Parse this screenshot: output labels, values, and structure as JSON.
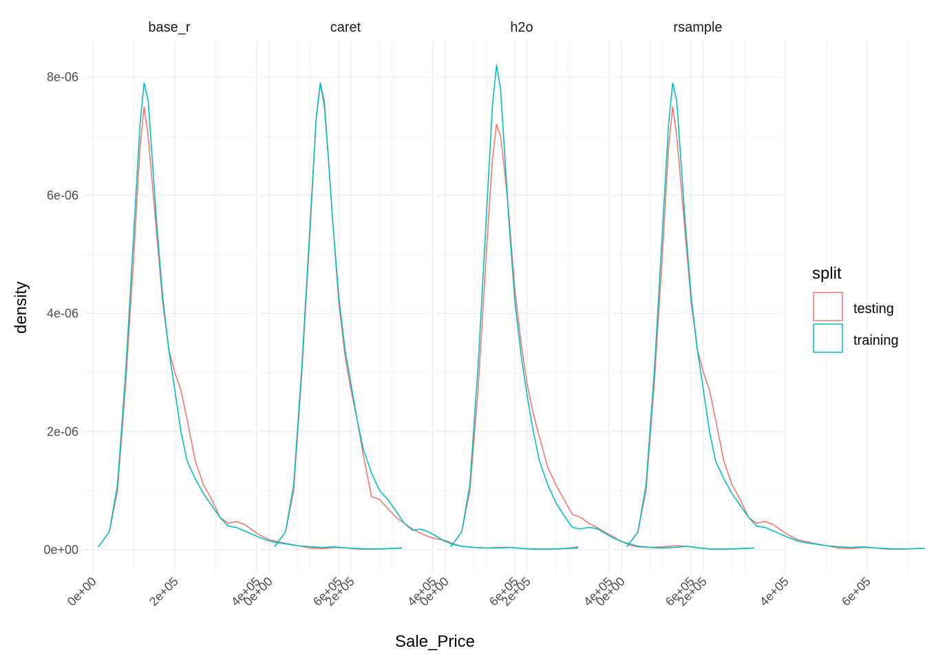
{
  "chart_data": {
    "type": "line",
    "xlabel": "Sale_Price",
    "ylabel": "density",
    "panels": [
      "base_r",
      "caret",
      "h2o",
      "rsample"
    ],
    "x_ticks": [
      0,
      200000,
      400000,
      600000
    ],
    "x_tick_labels": [
      "0e+00",
      "2e+05",
      "4e+05",
      "6e+05"
    ],
    "y_ticks": [
      0,
      2e-06,
      4e-06,
      6e-06,
      8e-06
    ],
    "y_tick_labels": [
      "0e+00",
      "2e-06",
      "4e-06",
      "6e-06",
      "8e-06"
    ],
    "xlim": [
      0,
      755000
    ],
    "ylim": [
      0,
      8.2e-06
    ],
    "grid": true,
    "legend": {
      "title": "split",
      "position": "right",
      "entries": [
        "testing",
        "training"
      ]
    },
    "colors": {
      "testing": "#F8766D",
      "training": "#00BFC4"
    },
    "series": [
      {
        "panel": "base_r",
        "name": "testing",
        "x": [
          13000,
          40000,
          60000,
          80000,
          100000,
          115000,
          125000,
          135000,
          145000,
          155000,
          170000,
          185000,
          200000,
          215000,
          230000,
          250000,
          270000,
          290000,
          310000,
          330000,
          350000,
          370000,
          390000,
          410000,
          430000,
          450000,
          470000,
          500000,
          530000,
          560000,
          590000,
          620000,
          650000,
          680000,
          720000,
          755000
        ],
        "y": [
          5e-08,
          3e-07,
          1e-06,
          2.8e-06,
          5e-06,
          6.8e-06,
          7.5e-06,
          7e-06,
          6.2e-06,
          5.4e-06,
          4.2e-06,
          3.4e-06,
          3e-06,
          2.7e-06,
          2.2e-06,
          1.5e-06,
          1.1e-06,
          8.5e-07,
          5.5e-07,
          4.5e-07,
          4.8e-07,
          4.3e-07,
          3.3e-07,
          2.4e-07,
          1.7e-07,
          1.4e-07,
          1.1e-07,
          7e-08,
          3e-08,
          2e-08,
          4e-08,
          3e-08,
          1e-08,
          1e-08,
          2e-08,
          3e-08
        ]
      },
      {
        "panel": "base_r",
        "name": "training",
        "x": [
          13000,
          40000,
          60000,
          80000,
          100000,
          115000,
          125000,
          135000,
          145000,
          155000,
          170000,
          185000,
          200000,
          215000,
          230000,
          250000,
          270000,
          290000,
          310000,
          330000,
          350000,
          370000,
          390000,
          410000,
          430000,
          450000,
          470000,
          500000,
          530000,
          560000,
          590000,
          620000,
          650000,
          680000,
          720000,
          755000
        ],
        "y": [
          5e-08,
          3e-07,
          1.1e-06,
          3e-06,
          5.4e-06,
          7.2e-06,
          7.9e-06,
          7.6e-06,
          6.6e-06,
          5.6e-06,
          4.3e-06,
          3.4e-06,
          2.7e-06,
          2e-06,
          1.5e-06,
          1.2e-06,
          9.5e-07,
          7.5e-07,
          5.5e-07,
          4e-07,
          3.8e-07,
          3.2e-07,
          2.6e-07,
          2e-07,
          1.5e-07,
          1.2e-07,
          1e-07,
          7e-08,
          5e-08,
          4e-08,
          5e-08,
          3e-08,
          2e-08,
          1e-08,
          2e-08,
          3e-08
        ]
      },
      {
        "panel": "caret",
        "name": "testing",
        "x": [
          13000,
          40000,
          60000,
          80000,
          100000,
          115000,
          125000,
          135000,
          145000,
          155000,
          170000,
          185000,
          200000,
          215000,
          230000,
          250000,
          270000,
          290000,
          310000,
          330000,
          350000,
          370000,
          390000,
          410000,
          430000,
          450000,
          470000,
          500000,
          530000,
          560000,
          590000,
          620000,
          650000,
          680000,
          720000,
          755000
        ],
        "y": [
          5e-08,
          3e-07,
          1e-06,
          3e-06,
          5.4e-06,
          7.3e-06,
          7.9e-06,
          7.6e-06,
          6.6e-06,
          5.6e-06,
          4.2e-06,
          3.3e-06,
          2.7e-06,
          2.2e-06,
          1.6e-06,
          9e-07,
          8.5e-07,
          7e-07,
          5.5e-07,
          4.5e-07,
          3.5e-07,
          2.8e-07,
          2.2e-07,
          1.8e-07,
          1.6e-07,
          1e-07,
          6e-08,
          4e-08,
          3e-08,
          4e-08,
          4e-08,
          2e-08,
          1e-08,
          1e-08,
          2e-08,
          5e-08
        ]
      },
      {
        "panel": "caret",
        "name": "training",
        "x": [
          13000,
          40000,
          60000,
          80000,
          100000,
          115000,
          125000,
          135000,
          145000,
          155000,
          170000,
          185000,
          200000,
          215000,
          230000,
          250000,
          270000,
          290000,
          310000,
          330000,
          350000,
          370000,
          390000,
          410000,
          430000,
          450000,
          470000,
          500000,
          530000,
          560000,
          590000,
          620000,
          650000,
          680000,
          720000,
          755000
        ],
        "y": [
          5e-08,
          3e-07,
          1.1e-06,
          3.1e-06,
          5.5e-06,
          7.3e-06,
          7.9e-06,
          7.5e-06,
          6.6e-06,
          5.6e-06,
          4.3e-06,
          3.4e-06,
          2.8e-06,
          2.2e-06,
          1.7e-06,
          1.3e-06,
          1e-06,
          8.5e-07,
          6.5e-07,
          4.5e-07,
          3.3e-07,
          3.5e-07,
          3e-07,
          2.2e-07,
          1.4e-07,
          9e-08,
          6e-08,
          4e-08,
          3e-08,
          3e-08,
          4e-08,
          2e-08,
          1e-08,
          1e-08,
          2e-08,
          3e-08
        ]
      },
      {
        "panel": "h2o",
        "name": "testing",
        "x": [
          13000,
          40000,
          60000,
          80000,
          100000,
          115000,
          125000,
          135000,
          145000,
          155000,
          170000,
          185000,
          200000,
          215000,
          230000,
          250000,
          270000,
          290000,
          310000,
          330000,
          350000,
          370000,
          390000,
          410000,
          430000,
          450000,
          470000,
          500000,
          530000,
          560000,
          590000,
          620000,
          650000,
          680000,
          720000,
          755000
        ],
        "y": [
          5e-08,
          3e-07,
          1e-06,
          2.7e-06,
          5e-06,
          6.6e-06,
          7.2e-06,
          7e-06,
          6.4e-06,
          5.7e-06,
          4.4e-06,
          3.5e-06,
          2.8e-06,
          2.3e-06,
          1.9e-06,
          1.4e-06,
          1.1e-06,
          8.5e-07,
          6e-07,
          5.5e-07,
          4.5e-07,
          3.8e-07,
          3e-07,
          2.2e-07,
          1.4e-07,
          8e-08,
          5e-08,
          4e-08,
          5e-08,
          7e-08,
          6e-08,
          3e-08,
          1e-08,
          1e-08,
          2e-08,
          3e-08
        ]
      },
      {
        "panel": "h2o",
        "name": "training",
        "x": [
          13000,
          40000,
          60000,
          80000,
          100000,
          115000,
          125000,
          135000,
          145000,
          155000,
          170000,
          185000,
          200000,
          215000,
          230000,
          250000,
          270000,
          290000,
          310000,
          330000,
          350000,
          370000,
          390000,
          410000,
          430000,
          450000,
          470000,
          500000,
          530000,
          560000,
          590000,
          620000,
          650000,
          680000,
          720000,
          755000
        ],
        "y": [
          5e-08,
          3e-07,
          1.1e-06,
          3.1e-06,
          5.6e-06,
          7.5e-06,
          8.2e-06,
          7.8e-06,
          6.7e-06,
          5.6e-06,
          4.2e-06,
          3.3e-06,
          2.6e-06,
          2e-06,
          1.5e-06,
          1.1e-06,
          8e-07,
          5.8e-07,
          3.8e-07,
          3.5e-07,
          3.8e-07,
          3.6e-07,
          2.8e-07,
          2e-07,
          1.4e-07,
          1e-07,
          6e-08,
          4e-08,
          3e-08,
          4e-08,
          6e-08,
          3e-08,
          1e-08,
          1e-08,
          2e-08,
          3e-08
        ]
      },
      {
        "panel": "rsample",
        "name": "testing",
        "x": [
          13000,
          40000,
          60000,
          80000,
          100000,
          115000,
          125000,
          135000,
          145000,
          155000,
          170000,
          185000,
          200000,
          215000,
          230000,
          250000,
          270000,
          290000,
          310000,
          330000,
          350000,
          370000,
          390000,
          410000,
          430000,
          450000,
          470000,
          500000,
          530000,
          560000,
          590000,
          620000,
          650000,
          680000,
          720000,
          755000
        ],
        "y": [
          5e-08,
          3e-07,
          1e-06,
          2.8e-06,
          5e-06,
          6.8e-06,
          7.5e-06,
          7e-06,
          6.2e-06,
          5.4e-06,
          4.2e-06,
          3.4e-06,
          3e-06,
          2.7e-06,
          2.2e-06,
          1.5e-06,
          1.1e-06,
          8.5e-07,
          5.5e-07,
          4.5e-07,
          4.8e-07,
          4.3e-07,
          3.3e-07,
          2.4e-07,
          1.7e-07,
          1.4e-07,
          1.1e-07,
          7e-08,
          3e-08,
          2e-08,
          4e-08,
          3e-08,
          1e-08,
          1e-08,
          2e-08,
          3e-08
        ]
      },
      {
        "panel": "rsample",
        "name": "training",
        "x": [
          13000,
          40000,
          60000,
          80000,
          100000,
          115000,
          125000,
          135000,
          145000,
          155000,
          170000,
          185000,
          200000,
          215000,
          230000,
          250000,
          270000,
          290000,
          310000,
          330000,
          350000,
          370000,
          390000,
          410000,
          430000,
          450000,
          470000,
          500000,
          530000,
          560000,
          590000,
          620000,
          650000,
          680000,
          720000,
          755000
        ],
        "y": [
          5e-08,
          3e-07,
          1.1e-06,
          3e-06,
          5.4e-06,
          7.2e-06,
          7.9e-06,
          7.6e-06,
          6.6e-06,
          5.6e-06,
          4.3e-06,
          3.4e-06,
          2.7e-06,
          2e-06,
          1.5e-06,
          1.2e-06,
          9.5e-07,
          7.5e-07,
          5.5e-07,
          4e-07,
          3.8e-07,
          3.2e-07,
          2.6e-07,
          2e-07,
          1.5e-07,
          1.2e-07,
          1e-07,
          7e-08,
          5e-08,
          4e-08,
          5e-08,
          3e-08,
          2e-08,
          1e-08,
          2e-08,
          3e-08
        ]
      }
    ]
  }
}
